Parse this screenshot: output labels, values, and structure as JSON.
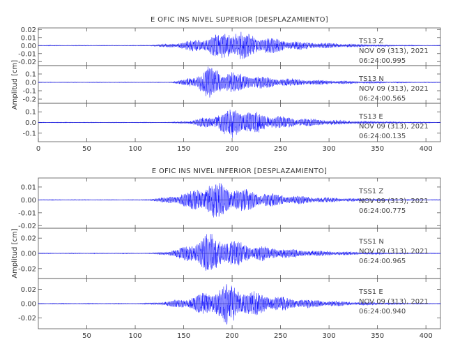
{
  "chart_data": [
    {
      "type": "line",
      "title": "E OFIC INS NIVEL SUPERIOR [DESPLAZAMIENTO]",
      "ylabel": "Amplitud [cm]",
      "xlim": [
        0,
        415
      ],
      "x_ticks": [
        "0",
        "50",
        "100",
        "150",
        "200",
        "250",
        "300",
        "350",
        "400"
      ],
      "x_tick_values": [
        0,
        50,
        100,
        150,
        200,
        250,
        300,
        350,
        400
      ],
      "traces": [
        {
          "station": "TS13",
          "component": "Z",
          "date": "NOV 09 (313), 2021",
          "time": "06:24:00.995",
          "ylim": [
            -0.025,
            0.022
          ],
          "y_ticks": [
            "0.02",
            "0.01",
            "0.00",
            "-0.01",
            "-0.02"
          ],
          "y_tick_values": [
            0.02,
            0.01,
            0.0,
            -0.01,
            -0.02
          ],
          "peak": 0.022,
          "onset": 100,
          "peak_time": 200,
          "coda": 380
        },
        {
          "station": "TS13",
          "component": "N",
          "date": "NOV 09 (313), 2021",
          "time": "06:24:00.565",
          "ylim": [
            -0.25,
            0.2
          ],
          "y_ticks": [
            "0.1",
            "0.0",
            "-0.1",
            "-0.2"
          ],
          "y_tick_values": [
            0.1,
            0.0,
            -0.1,
            -0.2
          ],
          "peak": 0.2,
          "onset": 130,
          "peak_time": 175,
          "coda": 380
        },
        {
          "station": "TS13",
          "component": "E",
          "date": "NOV 09 (313), 2021",
          "time": "06:24:00.135",
          "ylim": [
            -0.18,
            0.18
          ],
          "y_ticks": [
            "0.1",
            "0.0",
            "-0.1"
          ],
          "y_tick_values": [
            0.1,
            0.0,
            -0.1
          ],
          "peak": 0.16,
          "onset": 130,
          "peak_time": 200,
          "coda": 390
        }
      ]
    },
    {
      "type": "line",
      "title": "E OFIC INS NIVEL INFERIOR [DESPLAZAMIENTO]",
      "ylabel": "Amplitud [cm]",
      "xlim": [
        0,
        415
      ],
      "x_ticks": [
        "50",
        "100",
        "150",
        "200",
        "250",
        "300",
        "350",
        "400"
      ],
      "x_tick_values": [
        50,
        100,
        150,
        200,
        250,
        300,
        350,
        400
      ],
      "traces": [
        {
          "station": "TSS1",
          "component": "Z",
          "date": "NOV 09 (313), 2021",
          "time": "06:24:00.775",
          "ylim": [
            -0.022,
            0.017
          ],
          "y_ticks": [
            "0.01",
            "0.00",
            "-0.01",
            "-0.02"
          ],
          "y_tick_values": [
            0.01,
            0.0,
            -0.01,
            -0.02
          ],
          "peak": 0.016,
          "onset": 100,
          "peak_time": 180,
          "coda": 370
        },
        {
          "station": "TSS1",
          "component": "N",
          "date": "NOV 09 (313), 2021",
          "time": "06:24:00.965",
          "ylim": [
            -0.033,
            0.033
          ],
          "y_ticks": [
            "0.02",
            "0.00",
            "-0.02"
          ],
          "y_tick_values": [
            0.02,
            0.0,
            -0.02
          ],
          "peak": 0.028,
          "onset": 110,
          "peak_time": 175,
          "coda": 370
        },
        {
          "station": "TSS1",
          "component": "E",
          "date": "NOV 09 (313), 2021",
          "time": "06:24:00.940",
          "ylim": [
            -0.035,
            0.035
          ],
          "y_ticks": [
            "0.02",
            "0.00",
            "-0.02"
          ],
          "y_tick_values": [
            0.02,
            0.0,
            -0.02
          ],
          "peak": 0.03,
          "onset": 100,
          "peak_time": 195,
          "coda": 380
        }
      ]
    }
  ]
}
